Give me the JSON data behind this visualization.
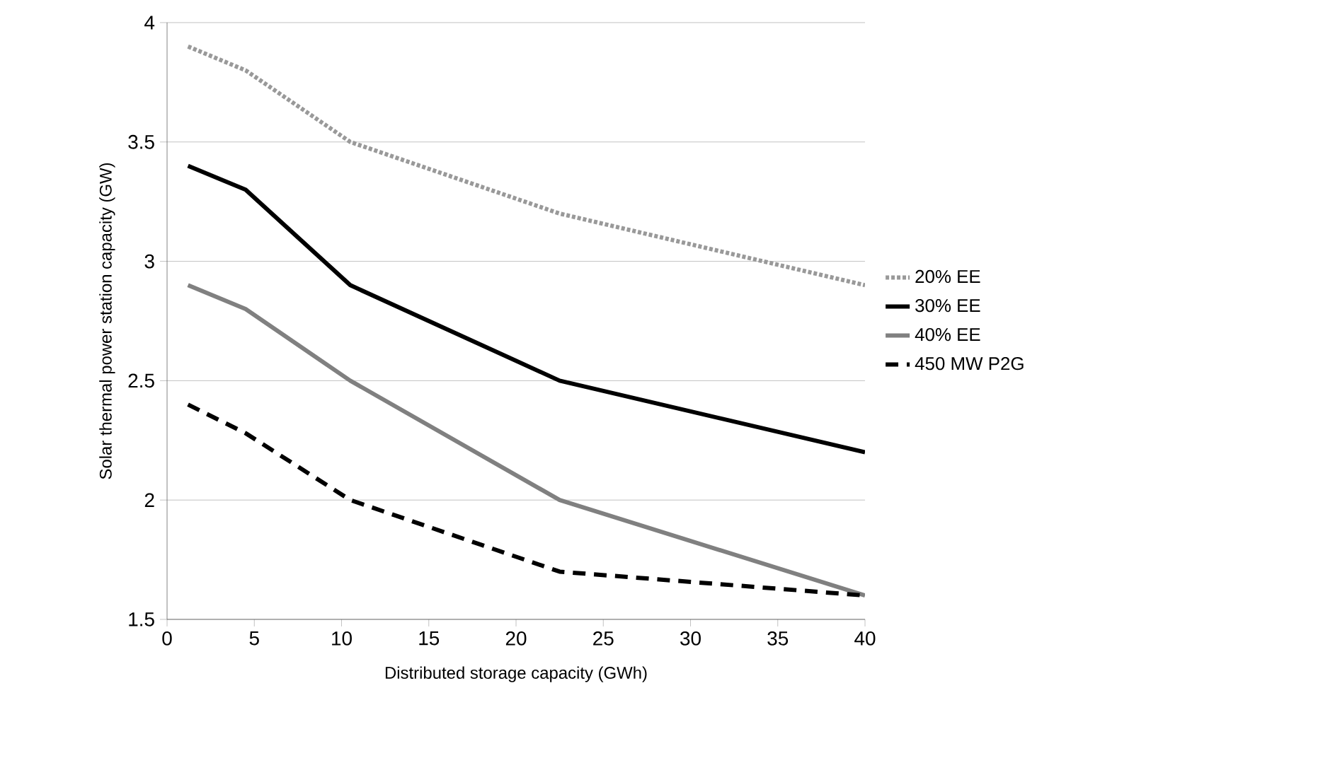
{
  "chart_data": {
    "type": "line",
    "xlabel": "Distributed storage capacity (GWh)",
    "ylabel": "Solar thermal power station capacity (GW)",
    "x": [
      1.2,
      4.5,
      10.5,
      22.5,
      40
    ],
    "series": [
      {
        "name": "20% EE",
        "color": "#999999",
        "line_style": "dotted",
        "values": [
          3.9,
          3.8,
          3.5,
          3.2,
          2.9
        ]
      },
      {
        "name": "30% EE",
        "color": "#000000",
        "line_style": "solid",
        "values": [
          3.4,
          3.3,
          2.9,
          2.5,
          2.2
        ]
      },
      {
        "name": "40% EE",
        "color": "#808080",
        "line_style": "solid",
        "values": [
          2.9,
          2.8,
          2.5,
          2.0,
          1.6
        ]
      },
      {
        "name": "450 MW P2G",
        "color": "#000000",
        "line_style": "dashed",
        "values": [
          2.4,
          2.28,
          2.0,
          1.7,
          1.6
        ]
      }
    ],
    "xlim": [
      0,
      40
    ],
    "xticks": [
      0,
      5,
      10,
      15,
      20,
      25,
      30,
      35,
      40
    ],
    "ylim": [
      1.5,
      4
    ],
    "yticks": [
      1.5,
      2,
      2.5,
      3,
      3.5,
      4
    ],
    "grid": "y",
    "legend": "right",
    "marker": "none"
  }
}
